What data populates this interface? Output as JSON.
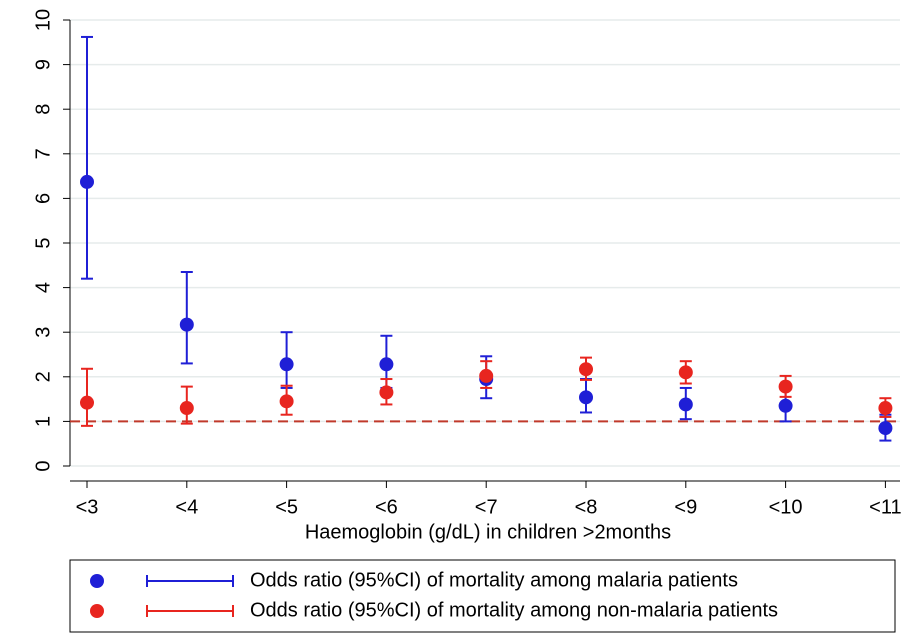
{
  "chart_data": {
    "type": "errorbar",
    "x_label": "Haemoglobin (g/dL) in children >2months",
    "categories": [
      "<3",
      "<4",
      "<5",
      "<6",
      "<7",
      "<8",
      "<9",
      "<10",
      "<11"
    ],
    "series": [
      {
        "name": "Odds ratio (95%CI) of mortality among malaria patients",
        "color": "#1f1fd6",
        "values": [
          6.37,
          3.17,
          2.28,
          2.28,
          1.95,
          1.54,
          1.38,
          1.35,
          0.85
        ],
        "lower": [
          4.2,
          2.3,
          1.75,
          1.75,
          1.52,
          1.2,
          1.05,
          1.0,
          0.57
        ],
        "upper": [
          9.62,
          4.35,
          3.0,
          2.92,
          2.46,
          1.95,
          1.75,
          1.72,
          1.15
        ]
      },
      {
        "name": "Odds ratio (95%CI) of mortality among non-malaria patients",
        "color": "#e8251f",
        "values": [
          1.42,
          1.3,
          1.45,
          1.65,
          2.02,
          2.17,
          2.1,
          1.78,
          1.3
        ],
        "lower": [
          0.9,
          0.95,
          1.15,
          1.38,
          1.75,
          1.93,
          1.85,
          1.55,
          1.1
        ],
        "upper": [
          2.18,
          1.78,
          1.8,
          1.95,
          2.35,
          2.43,
          2.35,
          2.02,
          1.52
        ]
      }
    ],
    "reference_line": {
      "value": 1,
      "color": "#c0392b"
    },
    "ylim": [
      0,
      10
    ],
    "yticks": [
      0,
      1,
      2,
      3,
      4,
      5,
      6,
      7,
      8,
      9,
      10
    ],
    "grid": true,
    "legend": "bottom"
  }
}
